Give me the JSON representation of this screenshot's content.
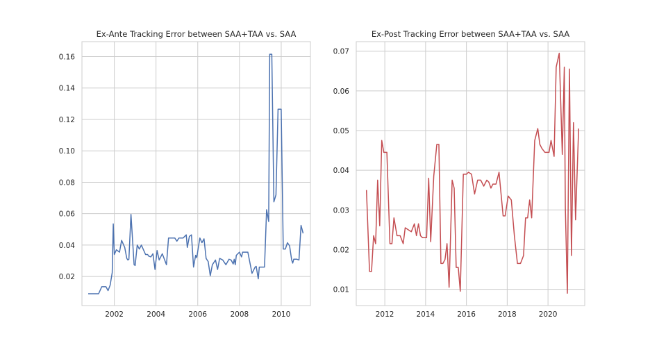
{
  "chart_data": [
    {
      "type": "line",
      "title": "Ex-Ante Tracking Error between SAA+TAA vs. SAA",
      "xlabel": "",
      "ylabel": "",
      "x_ticks": [
        2002,
        2004,
        2006,
        2008,
        2010
      ],
      "x_tick_labels": [
        "2002",
        "2004",
        "2006",
        "2008",
        "2010"
      ],
      "y_ticks": [
        0.02,
        0.04,
        0.06,
        0.08,
        0.1,
        0.12,
        0.14,
        0.16
      ],
      "y_tick_labels": [
        "0.02",
        "0.04",
        "0.06",
        "0.08",
        "0.10",
        "0.12",
        "0.14",
        "0.16"
      ],
      "xlim": [
        2000.45,
        2011.4
      ],
      "ylim": [
        0.0015,
        0.1695
      ],
      "grid": true,
      "color": "#4c72b0",
      "series": [
        {
          "x": [
            2000.75,
            2001.0,
            2001.25,
            2001.4,
            2001.6,
            2001.7,
            2001.8,
            2001.9,
            2001.95,
            2002.0,
            2002.1,
            2002.25,
            2002.35,
            2002.5,
            2002.6,
            2002.65,
            2002.7,
            2002.8,
            2002.95,
            2003.0,
            2003.1,
            2003.2,
            2003.3,
            2003.5,
            2003.6,
            2003.65,
            2003.75,
            2003.85,
            2003.95,
            2004.05,
            2004.15,
            2004.3,
            2004.5,
            2004.6,
            2004.75,
            2004.9,
            2005.0,
            2005.1,
            2005.3,
            2005.45,
            2005.5,
            2005.6,
            2005.7,
            2005.8,
            2005.9,
            2005.95,
            2006.1,
            2006.2,
            2006.3,
            2006.4,
            2006.5,
            2006.6,
            2006.7,
            2006.85,
            2006.95,
            2007.05,
            2007.2,
            2007.35,
            2007.5,
            2007.6,
            2007.7,
            2007.75,
            2007.8,
            2007.85,
            2008.0,
            2008.1,
            2008.15,
            2008.25,
            2008.3,
            2008.4,
            2008.6,
            2008.75,
            2008.8,
            2008.9,
            2008.95,
            2009.0,
            2009.15,
            2009.2,
            2009.3,
            2009.4,
            2009.45,
            2009.55,
            2009.65,
            2009.75,
            2009.85,
            2010.0,
            2010.1,
            2010.2,
            2010.3,
            2010.4,
            2010.5,
            2010.55,
            2010.6,
            2010.75,
            2010.85,
            2010.95,
            2011.05
          ],
          "y": [
            0.009,
            0.009,
            0.009,
            0.0135,
            0.0135,
            0.011,
            0.0145,
            0.0225,
            0.0535,
            0.034,
            0.037,
            0.0355,
            0.043,
            0.0385,
            0.0315,
            0.0305,
            0.031,
            0.0595,
            0.0275,
            0.027,
            0.04,
            0.0375,
            0.04,
            0.034,
            0.034,
            0.033,
            0.0325,
            0.0345,
            0.0245,
            0.0365,
            0.0305,
            0.0345,
            0.0275,
            0.0445,
            0.0445,
            0.0445,
            0.0425,
            0.0445,
            0.0445,
            0.0465,
            0.0385,
            0.0455,
            0.0465,
            0.026,
            0.0335,
            0.032,
            0.0445,
            0.0415,
            0.044,
            0.0315,
            0.0295,
            0.0205,
            0.0275,
            0.0305,
            0.0245,
            0.0315,
            0.0305,
            0.0275,
            0.031,
            0.0305,
            0.028,
            0.031,
            0.0275,
            0.0335,
            0.0355,
            0.0325,
            0.0355,
            0.0355,
            0.0355,
            0.0355,
            0.022,
            0.026,
            0.0265,
            0.0185,
            0.026,
            0.026,
            0.026,
            0.026,
            0.0625,
            0.055,
            0.1615,
            0.1615,
            0.0675,
            0.072,
            0.1265,
            0.1265,
            0.0375,
            0.0375,
            0.0415,
            0.0395,
            0.0305,
            0.0285,
            0.031,
            0.031,
            0.0305,
            0.0525,
            0.0475
          ]
        }
      ]
    },
    {
      "type": "line",
      "title": "Ex-Post Tracking Error between SAA+TAA vs. SAA",
      "xlabel": "",
      "ylabel": "",
      "x_ticks": [
        2012,
        2014,
        2016,
        2018,
        2020
      ],
      "x_tick_labels": [
        "2012",
        "2014",
        "2016",
        "2018",
        "2020"
      ],
      "y_ticks": [
        0.01,
        0.02,
        0.03,
        0.04,
        0.05,
        0.06,
        0.07
      ],
      "y_tick_labels": [
        "0.01",
        "0.02",
        "0.03",
        "0.04",
        "0.05",
        "0.06",
        "0.07"
      ],
      "xlim": [
        2010.6,
        2021.8
      ],
      "ylim": [
        0.0059,
        0.0724
      ],
      "grid": true,
      "color": "#c44e52",
      "series": [
        {
          "x": [
            2011.1,
            2011.25,
            2011.35,
            2011.45,
            2011.55,
            2011.65,
            2011.75,
            2011.85,
            2011.95,
            2012.1,
            2012.25,
            2012.35,
            2012.45,
            2012.6,
            2012.75,
            2012.9,
            2013.0,
            2013.15,
            2013.3,
            2013.45,
            2013.55,
            2013.65,
            2013.75,
            2013.85,
            2014.05,
            2014.15,
            2014.25,
            2014.4,
            2014.55,
            2014.65,
            2014.75,
            2014.85,
            2014.95,
            2015.05,
            2015.15,
            2015.3,
            2015.4,
            2015.5,
            2015.6,
            2015.7,
            2015.85,
            2016.0,
            2016.1,
            2016.25,
            2016.4,
            2016.55,
            2016.7,
            2016.85,
            2017.0,
            2017.1,
            2017.2,
            2017.3,
            2017.45,
            2017.6,
            2017.8,
            2017.9,
            2018.05,
            2018.2,
            2018.35,
            2018.5,
            2018.65,
            2018.8,
            2018.9,
            2019.0,
            2019.1,
            2019.2,
            2019.35,
            2019.5,
            2019.6,
            2019.7,
            2019.85,
            2019.95,
            2020.05,
            2020.15,
            2020.3,
            2020.4,
            2020.55,
            2020.7,
            2020.8,
            2020.85,
            2020.95,
            2021.05,
            2021.15,
            2021.25,
            2021.35
          ],
          "y": [
            0.035,
            0.0145,
            0.0145,
            0.0235,
            0.0215,
            0.0375,
            0.026,
            0.0475,
            0.0445,
            0.0445,
            0.0215,
            0.0215,
            0.028,
            0.0235,
            0.0235,
            0.0215,
            0.0255,
            0.025,
            0.0245,
            0.0265,
            0.0235,
            0.0265,
            0.0235,
            0.023,
            0.023,
            0.038,
            0.022,
            0.0385,
            0.0465,
            0.0465,
            0.0165,
            0.0165,
            0.0175,
            0.0215,
            0.0105,
            0.0375,
            0.0355,
            0.0155,
            0.0155,
            0.0095,
            0.039,
            0.039,
            0.0395,
            0.039,
            0.034,
            0.0375,
            0.0375,
            0.036,
            0.0375,
            0.037,
            0.0355,
            0.0365,
            0.0365,
            0.0395,
            0.0285,
            0.0285,
            0.0335,
            0.0325,
            0.0235,
            0.0165,
            0.0165,
            0.0185,
            0.028,
            0.028,
            0.0325,
            0.028,
            0.0475,
            0.0505,
            0.0465,
            0.0455,
            0.0445,
            0.0445,
            0.0445,
            0.0475,
            0.0435,
            0.066,
            0.0695,
            0.044,
            0.066,
            0.0305,
            0.009,
            0.0655,
            0.0185,
            0.052,
            0.0275
          ],
          "y_tail": [
            0.0505
          ]
        }
      ]
    }
  ]
}
